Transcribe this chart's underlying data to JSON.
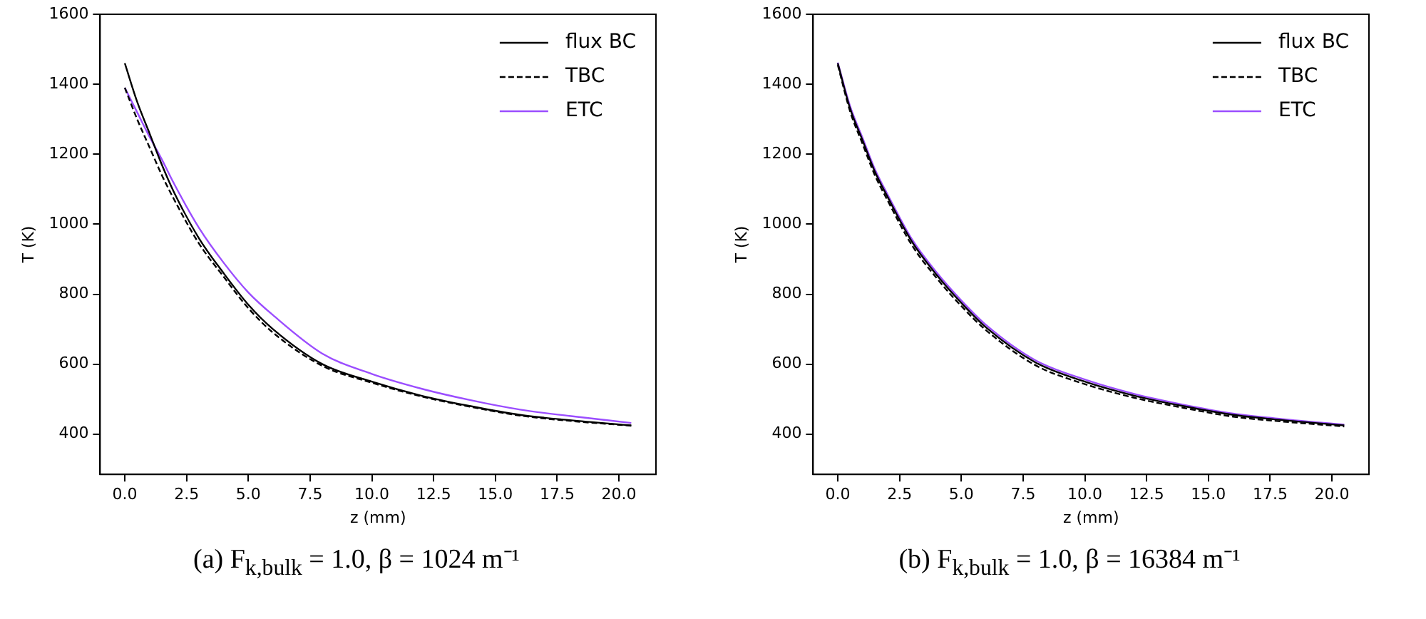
{
  "chart_data": [
    {
      "type": "line",
      "title": "(a) F$_{k,bulk}$ = 1.0, β = 1024 m⁻¹",
      "xlabel": "z (mm)",
      "ylabel": "T (K)",
      "legend": "top right",
      "grid": false,
      "marker": "none",
      "xlim": [
        -1,
        21.5
      ],
      "ylim": [
        285,
        1600
      ],
      "xticks": [
        {
          "value": 0,
          "label": "0.0"
        },
        {
          "value": 2.5,
          "label": "2.5"
        },
        {
          "value": 5,
          "label": "5.0"
        },
        {
          "value": 7.5,
          "label": "7.5"
        },
        {
          "value": 10,
          "label": "10.0"
        },
        {
          "value": 12.5,
          "label": "12.5"
        },
        {
          "value": 15,
          "label": "15.0"
        },
        {
          "value": 17.5,
          "label": "17.5"
        },
        {
          "value": 20,
          "label": "20.0"
        }
      ],
      "yticks": [
        400,
        600,
        800,
        1000,
        1200,
        1400,
        1600
      ],
      "x": [
        0,
        0.5,
        1,
        1.5,
        2,
        3,
        4,
        5,
        6,
        8,
        10,
        12,
        14,
        16,
        18,
        20.5
      ],
      "series": [
        {
          "name": "flux BC",
          "color": "#000000",
          "line_style": "solid",
          "values": [
            1460,
            1350,
            1260,
            1170,
            1090,
            960,
            860,
            770,
            700,
            600,
            550,
            510,
            480,
            455,
            440,
            425
          ]
        },
        {
          "name": "TBC",
          "color": "#000000",
          "line_style": "dashed",
          "values": [
            1390,
            1300,
            1220,
            1140,
            1070,
            945,
            850,
            760,
            690,
            595,
            547,
            508,
            478,
            453,
            438,
            424
          ]
        },
        {
          "name": "ETC",
          "color": "#9b4dff",
          "line_style": "solid",
          "values": [
            1390,
            1320,
            1250,
            1185,
            1115,
            990,
            890,
            805,
            740,
            630,
            572,
            530,
            497,
            470,
            452,
            432
          ]
        }
      ]
    },
    {
      "type": "line",
      "title": "(b) F$_{k,bulk}$ = 1.0, β = 16384 m⁻¹",
      "xlabel": "z (mm)",
      "ylabel": "T (K)",
      "legend": "top right",
      "grid": false,
      "marker": "none",
      "xlim": [
        -1,
        21.5
      ],
      "ylim": [
        285,
        1600
      ],
      "xticks": [
        {
          "value": 0,
          "label": "0.0"
        },
        {
          "value": 2.5,
          "label": "2.5"
        },
        {
          "value": 5,
          "label": "5.0"
        },
        {
          "value": 7.5,
          "label": "7.5"
        },
        {
          "value": 10,
          "label": "10.0"
        },
        {
          "value": 12.5,
          "label": "12.5"
        },
        {
          "value": 15,
          "label": "15.0"
        },
        {
          "value": 17.5,
          "label": "17.5"
        },
        {
          "value": 20,
          "label": "20.0"
        }
      ],
      "yticks": [
        400,
        600,
        800,
        1000,
        1200,
        1400,
        1600
      ],
      "x": [
        0,
        0.5,
        1,
        1.5,
        2,
        3,
        4,
        5,
        6,
        8,
        10,
        12,
        14,
        16,
        18,
        20.5
      ],
      "series": [
        {
          "name": "flux BC",
          "color": "#000000",
          "line_style": "solid",
          "values": [
            1460,
            1330,
            1240,
            1150,
            1080,
            950,
            855,
            775,
            705,
            605,
            550,
            510,
            480,
            455,
            440,
            425
          ]
        },
        {
          "name": "TBC",
          "color": "#000000",
          "line_style": "dashed",
          "values": [
            1455,
            1322,
            1230,
            1140,
            1070,
            940,
            846,
            766,
            697,
            597,
            543,
            504,
            475,
            450,
            436,
            422
          ]
        },
        {
          "name": "ETC",
          "color": "#9b4dff",
          "line_style": "solid",
          "values": [
            1462,
            1337,
            1247,
            1157,
            1087,
            957,
            862,
            782,
            712,
            611,
            556,
            515,
            484,
            459,
            443,
            427
          ]
        }
      ]
    }
  ]
}
